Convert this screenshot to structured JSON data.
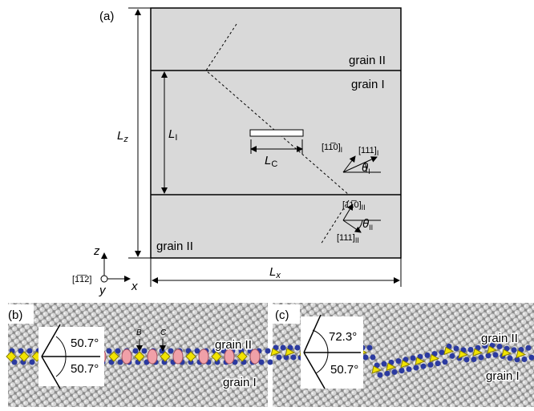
{
  "panel_a": {
    "label": "(a)",
    "grain_top": "grain II",
    "grain_middle": "grain I",
    "grain_bottom": "grain II",
    "length_lz": {
      "base": "L",
      "sub": "z"
    },
    "length_li": {
      "base": "L",
      "sub": "I"
    },
    "length_lc": {
      "base": "L",
      "sub": "C"
    },
    "length_lx": {
      "base": "L",
      "sub": "x"
    },
    "dir_110_i": {
      "base": "[11̅0]",
      "sub": "I"
    },
    "dir_111_i": {
      "base": "[111]",
      "sub": "I"
    },
    "theta_i": {
      "base": "θ",
      "sub": "I"
    },
    "dir_110_ii": {
      "base": "[11̅0]",
      "sub": "II"
    },
    "dir_111_ii": {
      "base": "[111]",
      "sub": "II"
    },
    "theta_ii": {
      "base": "θ",
      "sub": "II"
    },
    "axis_z": "z",
    "axis_y": "y",
    "axis_x": "x",
    "axis_normal": "[1̅1̅2]"
  },
  "panel_b": {
    "label": "(b)",
    "angle_top": "50.7°",
    "angle_bottom": "50.7°",
    "marker_b": "B",
    "marker_c": "C",
    "grain_top": "grain II",
    "grain_bottom": "grain I"
  },
  "panel_c": {
    "label": "(c)",
    "angle_top": "72.3°",
    "angle_bottom": "50.7°",
    "grain_top": "grain II",
    "grain_bottom": "grain I"
  }
}
